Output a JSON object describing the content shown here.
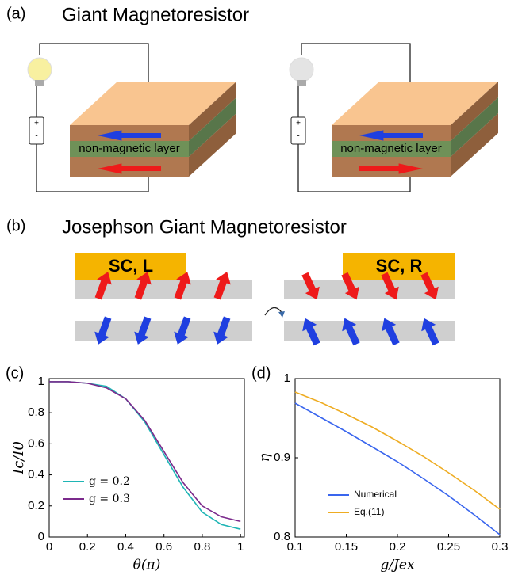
{
  "panel_a": {
    "label": "(a)",
    "title": "Giant Magnetoresistor",
    "layer_labels": [
      "non-magnetic layer",
      "non-magnetic layer"
    ],
    "battery_signs": [
      "+",
      "-",
      "+",
      "-"
    ]
  },
  "panel_b": {
    "label": "(b)",
    "title": "Josephson Giant Magnetoresistor",
    "sc_left": "SC, L",
    "sc_right": "SC, R"
  },
  "chart_data": [
    {
      "type": "line",
      "panel_label": "(c)",
      "x_label": "θ(π)",
      "y_label": "Ic/I0",
      "x": [
        0,
        0.1,
        0.2,
        0.3,
        0.4,
        0.5,
        0.6,
        0.7,
        0.8,
        0.9,
        1.0
      ],
      "series": [
        {
          "name": "g = 0.2",
          "color": "#1fb5b5",
          "values": [
            1.0,
            1.0,
            0.99,
            0.97,
            0.89,
            0.74,
            0.53,
            0.32,
            0.16,
            0.08,
            0.05
          ]
        },
        {
          "name": "g = 0.3",
          "color": "#7b2a8c",
          "values": [
            1.0,
            1.0,
            0.99,
            0.96,
            0.89,
            0.75,
            0.55,
            0.35,
            0.2,
            0.13,
            0.1
          ]
        }
      ],
      "xlim": [
        0,
        1.02
      ],
      "ylim": [
        0,
        1.02
      ],
      "xticks": [
        0,
        0.2,
        0.4,
        0.6,
        0.8,
        1
      ],
      "yticks": [
        0,
        0.2,
        0.4,
        0.6,
        0.8,
        1
      ]
    },
    {
      "type": "line",
      "panel_label": "(d)",
      "x_label": "g/Jex",
      "y_label": "η",
      "x": [
        0.1,
        0.125,
        0.15,
        0.175,
        0.2,
        0.225,
        0.25,
        0.275,
        0.3
      ],
      "series": [
        {
          "name": "Numerical",
          "color": "#3a66ee",
          "values": [
            0.969,
            0.951,
            0.933,
            0.914,
            0.895,
            0.874,
            0.852,
            0.828,
            0.803
          ]
        },
        {
          "name": "Eq.(11)",
          "color": "#eeac22",
          "values": [
            0.983,
            0.97,
            0.955,
            0.939,
            0.921,
            0.902,
            0.881,
            0.859,
            0.835
          ]
        }
      ],
      "xlim": [
        0.1,
        0.3
      ],
      "ylim": [
        0.8,
        1.0
      ],
      "xticks": [
        0.1,
        0.15,
        0.2,
        0.25,
        0.3
      ],
      "yticks": [
        0.8,
        0.9,
        1
      ]
    }
  ]
}
